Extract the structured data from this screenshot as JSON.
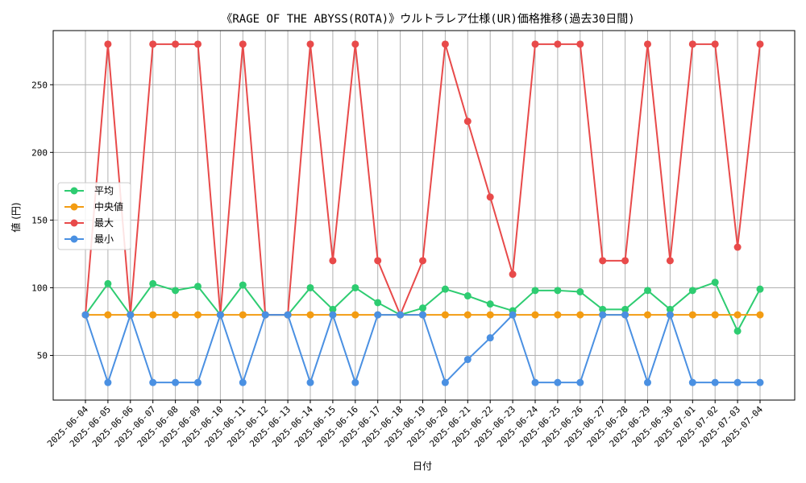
{
  "chart_data": {
    "type": "line",
    "title": "《RAGE OF THE ABYSS(ROTA)》ウルトラレア仕様(UR)価格推移(過去30日間)",
    "xlabel": "日付",
    "ylabel": "値 (円)",
    "ylim": [
      17,
      290
    ],
    "yticks": [
      50,
      100,
      150,
      200,
      250
    ],
    "grid": true,
    "legend_position": "center-left",
    "categories": [
      "2025-06-04",
      "2025-06-05",
      "2025-06-06",
      "2025-06-07",
      "2025-06-08",
      "2025-06-09",
      "2025-06-10",
      "2025-06-11",
      "2025-06-12",
      "2025-06-13",
      "2025-06-14",
      "2025-06-15",
      "2025-06-16",
      "2025-06-17",
      "2025-06-18",
      "2025-06-19",
      "2025-06-20",
      "2025-06-21",
      "2025-06-22",
      "2025-06-23",
      "2025-06-24",
      "2025-06-25",
      "2025-06-26",
      "2025-06-27",
      "2025-06-28",
      "2025-06-29",
      "2025-06-30",
      "2025-07-01",
      "2025-07-02",
      "2025-07-03",
      "2025-07-04"
    ],
    "series": [
      {
        "name": "平均",
        "color": "#2ecc71",
        "values": [
          80,
          103,
          80,
          103,
          98,
          101,
          80,
          102,
          80,
          80,
          100,
          84,
          100,
          89,
          80,
          85,
          99,
          94,
          88,
          83,
          98,
          98,
          97,
          84,
          84,
          98,
          84,
          98,
          104,
          68,
          99
        ]
      },
      {
        "name": "中央値",
        "color": "#f39c12",
        "values": [
          80,
          80,
          80,
          80,
          80,
          80,
          80,
          80,
          80,
          80,
          80,
          80,
          80,
          80,
          80,
          80,
          80,
          80,
          80,
          80,
          80,
          80,
          80,
          80,
          80,
          80,
          80,
          80,
          80,
          80,
          80
        ]
      },
      {
        "name": "最大",
        "color": "#e84a4a",
        "values": [
          80,
          280,
          80,
          280,
          280,
          280,
          80,
          280,
          80,
          80,
          280,
          120,
          280,
          120,
          80,
          120,
          280,
          223,
          167,
          110,
          280,
          280,
          280,
          120,
          120,
          280,
          120,
          280,
          280,
          130,
          280
        ]
      },
      {
        "name": "最小",
        "color": "#4a90e2",
        "values": [
          80,
          30,
          80,
          30,
          30,
          30,
          80,
          30,
          80,
          80,
          30,
          80,
          30,
          80,
          80,
          80,
          30,
          47,
          63,
          80,
          30,
          30,
          30,
          80,
          80,
          30,
          80,
          30,
          30,
          30,
          30
        ]
      }
    ]
  }
}
